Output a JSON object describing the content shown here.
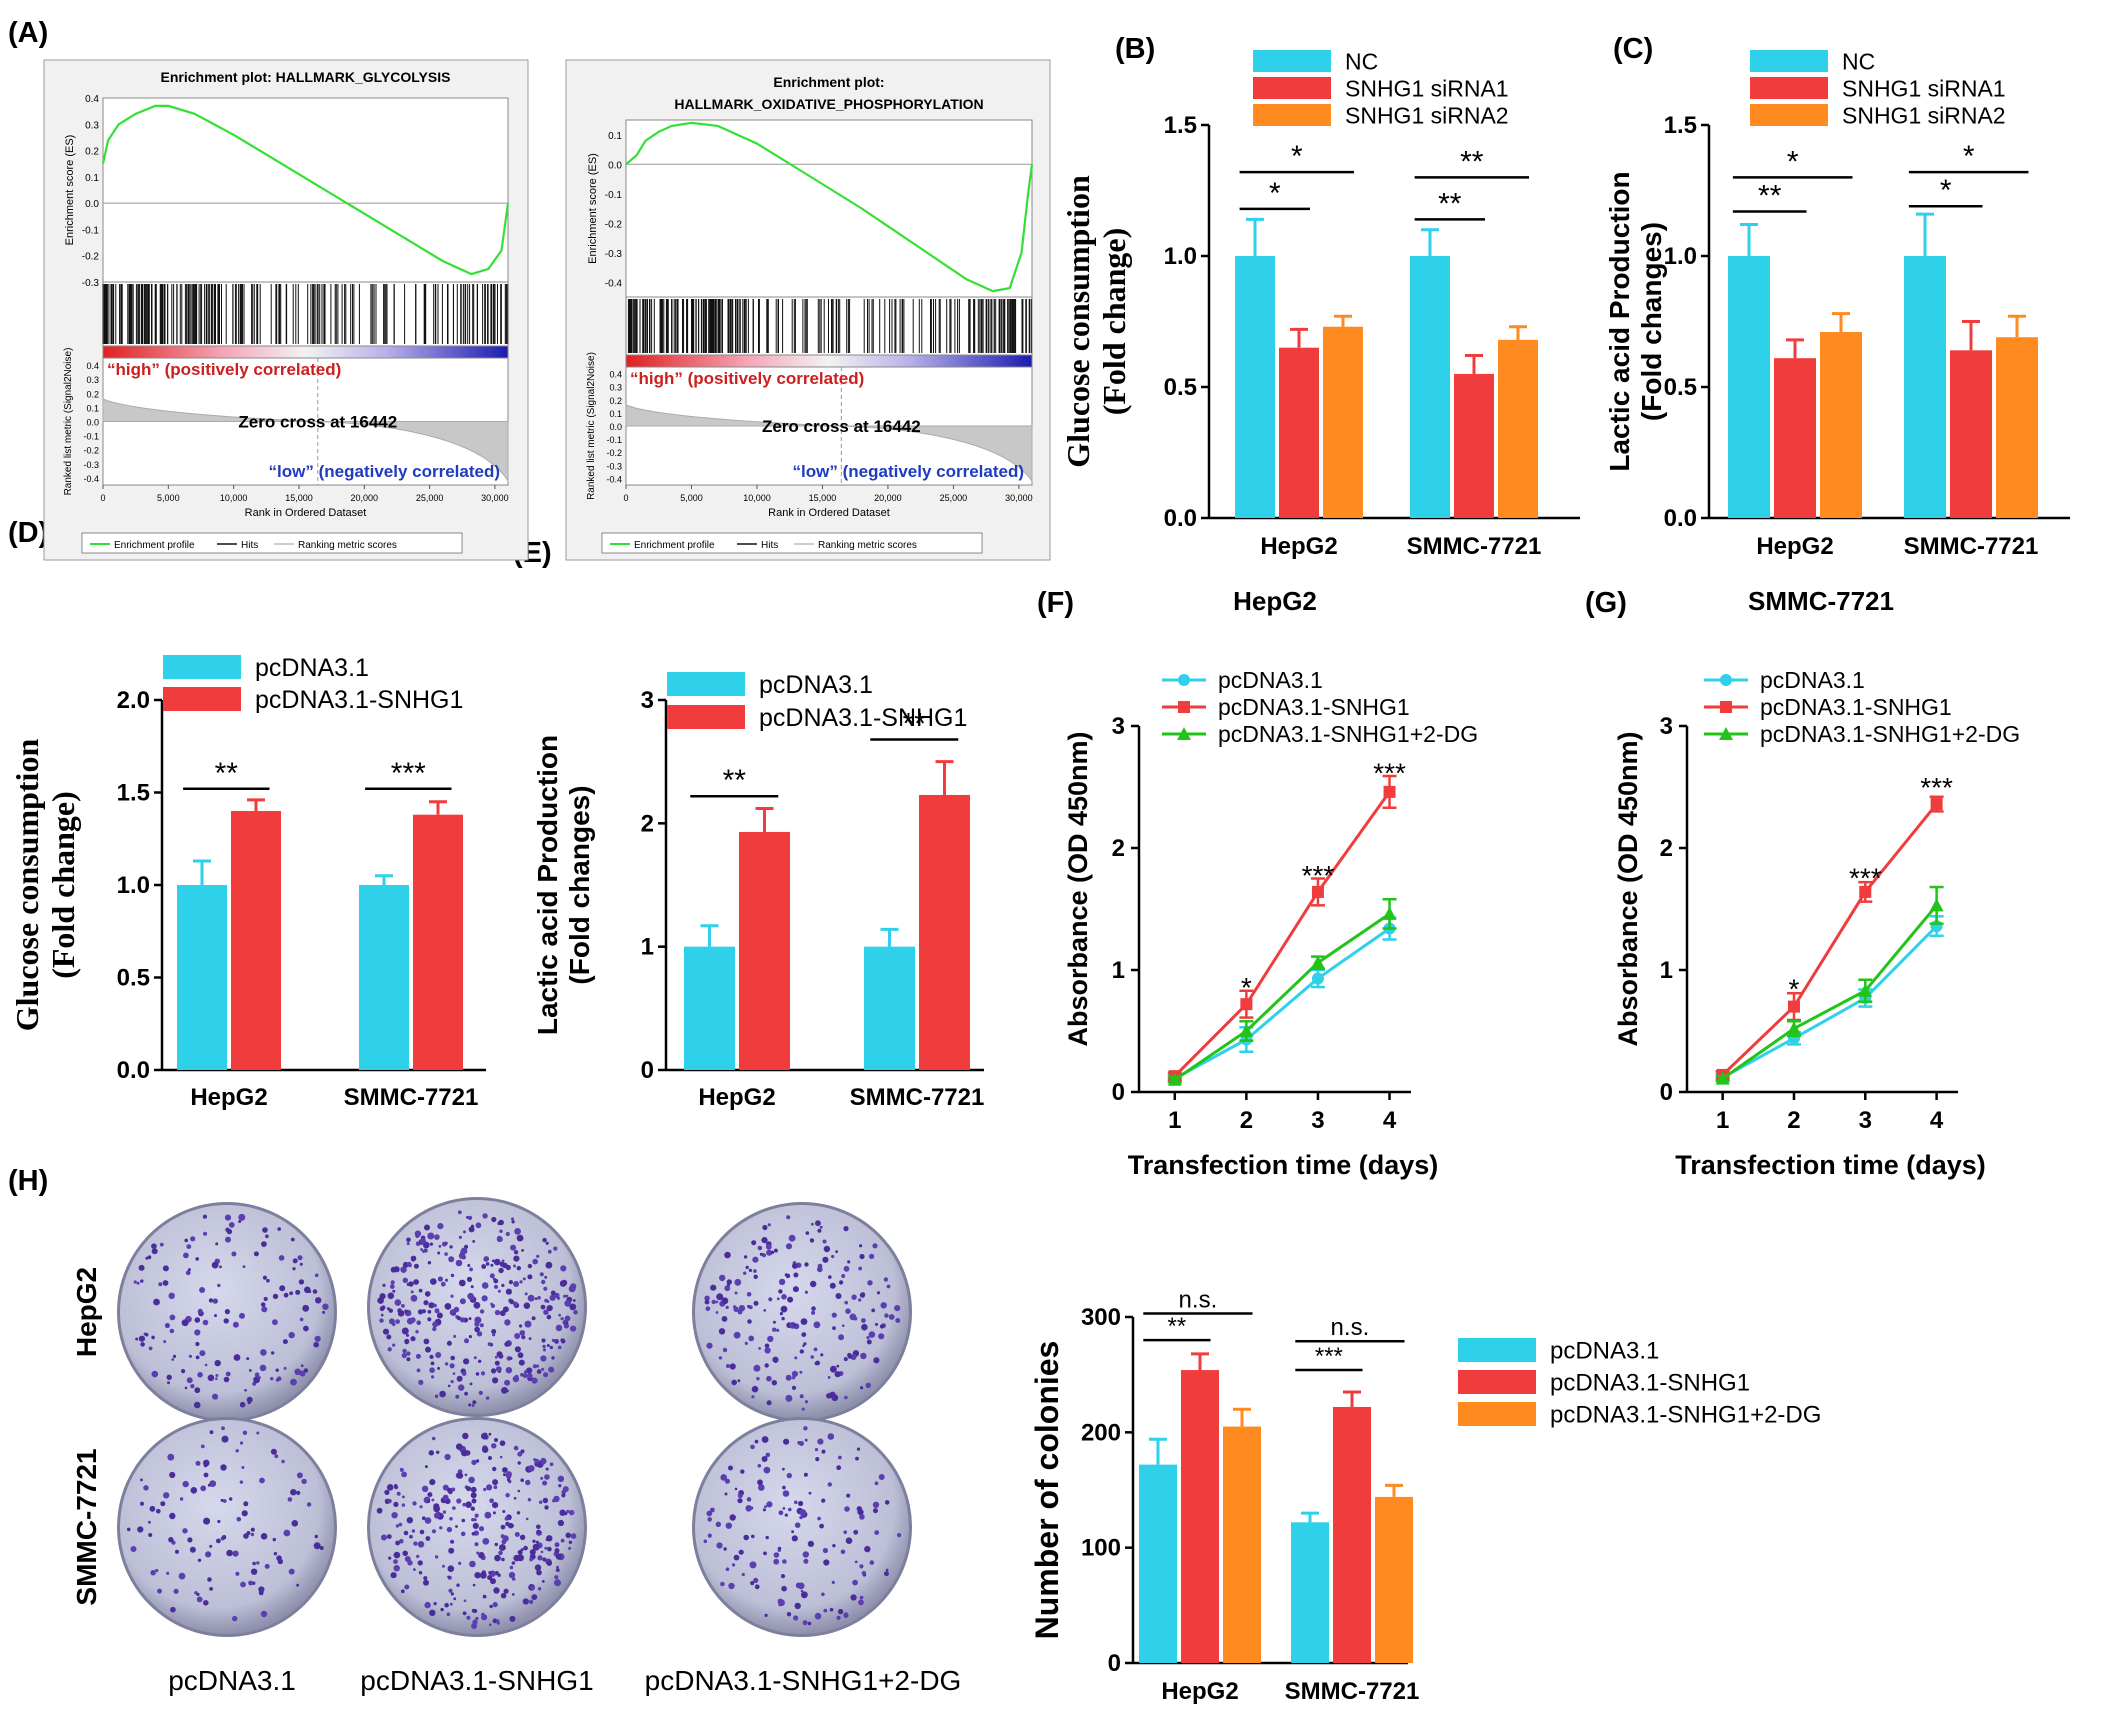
{
  "panel_labels": [
    "(A)",
    "(B)",
    "(C)",
    "(D)",
    "(E)",
    "(F)",
    "(G)",
    "(H)"
  ],
  "gsea": [
    {
      "title_lines": [
        "Enrichment plot: HALLMARK_GLYCOLYSIS"
      ],
      "es_ylabel": "Enrichment score (ES)",
      "es_ticks": [
        "0.4",
        "0.3",
        "0.2",
        "0.1",
        "0.0",
        "-0.1",
        "-0.2",
        "-0.3"
      ],
      "es_range": [
        -0.3,
        0.4
      ],
      "es_curve": [
        [
          0,
          0.15
        ],
        [
          400,
          0.24
        ],
        [
          1200,
          0.3
        ],
        [
          2500,
          0.34
        ],
        [
          4000,
          0.37
        ],
        [
          5000,
          0.37
        ],
        [
          7000,
          0.34
        ],
        [
          10000,
          0.26
        ],
        [
          14000,
          0.14
        ],
        [
          18000,
          0.02
        ],
        [
          22000,
          -0.1
        ],
        [
          26000,
          -0.22
        ],
        [
          28200,
          -0.27
        ],
        [
          29500,
          -0.25
        ],
        [
          30500,
          -0.18
        ],
        [
          31000,
          0.0
        ]
      ],
      "metric_ylabel": "Ranked list metric (Signal2Noise)",
      "metric_ticks": [
        "0.4",
        "0.3",
        "0.2",
        "0.1",
        "0.0",
        "-0.1",
        "-0.2",
        "-0.3",
        "-0.4"
      ],
      "high_label": "“high” (positively correlated)",
      "zero_cross_label": "Zero cross at 16442",
      "low_label": "“low” (negatively correlated)",
      "xlabel": "Rank in Ordered Dataset",
      "xticks": [
        "0",
        "5,000",
        "10,000",
        "15,000",
        "20,000",
        "25,000",
        "30,000"
      ],
      "legend": [
        "Enrichment profile",
        "Hits",
        "Ranking metric scores"
      ]
    },
    {
      "title_lines": [
        "Enrichment plot:",
        "HALLMARK_OXIDATIVE_PHOSPHORYLATION"
      ],
      "es_ylabel": "Enrichment score (ES)",
      "es_ticks": [
        "0.1",
        "0.0",
        "-0.1",
        "-0.2",
        "-0.3",
        "-0.4"
      ],
      "es_range": [
        -0.45,
        0.15
      ],
      "es_curve": [
        [
          0,
          0.0
        ],
        [
          800,
          0.03
        ],
        [
          1500,
          0.08
        ],
        [
          2500,
          0.11
        ],
        [
          3500,
          0.13
        ],
        [
          5000,
          0.14
        ],
        [
          7000,
          0.13
        ],
        [
          10000,
          0.07
        ],
        [
          14000,
          -0.04
        ],
        [
          18000,
          -0.15
        ],
        [
          22000,
          -0.27
        ],
        [
          26000,
          -0.39
        ],
        [
          28000,
          -0.43
        ],
        [
          29300,
          -0.42
        ],
        [
          30200,
          -0.3
        ],
        [
          30700,
          -0.1
        ],
        [
          31000,
          0.0
        ]
      ],
      "metric_ylabel": "Ranked list metric (Signal2Noise)",
      "metric_ticks": [
        "0.4",
        "0.3",
        "0.2",
        "0.1",
        "0.0",
        "-0.1",
        "-0.2",
        "-0.3",
        "-0.4"
      ],
      "high_label": "“high” (positively correlated)",
      "zero_cross_label": "Zero cross at 16442",
      "low_label": "“low” (negatively correlated)",
      "xlabel": "Rank in Ordered Dataset",
      "xticks": [
        "0",
        "5,000",
        "10,000",
        "15,000",
        "20,000",
        "25,000",
        "30,000"
      ],
      "legend": [
        "Enrichment profile",
        "Hits",
        "Ranking metric scores"
      ]
    }
  ],
  "colors": {
    "cyan": "#2ed0ea",
    "red": "#f03c3c",
    "orange": "#ff8a1f",
    "green": "#22c41a",
    "gsea_line": "#33e033",
    "high_text": "#cc1f1f",
    "low_text": "#1f3bbf"
  },
  "chart_data": [
    {
      "panel": "B",
      "type": "bar",
      "ylabel_lines": [
        "Glucose consumption",
        "(Fold change)"
      ],
      "serif_ylabel": true,
      "categories": [
        "HepG2",
        "SMMC-7721"
      ],
      "series": [
        {
          "name": "NC",
          "values": [
            1.0,
            1.0
          ],
          "errors": [
            0.14,
            0.1
          ]
        },
        {
          "name": "SNHG1 siRNA1",
          "values": [
            0.65,
            0.55
          ],
          "errors": [
            0.07,
            0.07
          ]
        },
        {
          "name": "SNHG1 siRNA2",
          "values": [
            0.73,
            0.68
          ],
          "errors": [
            0.04,
            0.05
          ]
        }
      ],
      "ylim": [
        0,
        1.5
      ],
      "yticks": [
        "0.0",
        "0.5",
        "1.0",
        "1.5"
      ],
      "annotations": [
        {
          "group": 0,
          "from": 0,
          "to": 1,
          "y": 1.18,
          "label": "*"
        },
        {
          "group": 0,
          "from": 0,
          "to": 2,
          "y": 1.32,
          "label": "*"
        },
        {
          "group": 1,
          "from": 0,
          "to": 1,
          "y": 1.14,
          "label": "**"
        },
        {
          "group": 1,
          "from": 0,
          "to": 2,
          "y": 1.3,
          "label": "**"
        }
      ]
    },
    {
      "panel": "C",
      "type": "bar",
      "ylabel_lines": [
        "Lactic acid Production",
        "(Fold changes)"
      ],
      "serif_ylabel": false,
      "categories": [
        "HepG2",
        "SMMC-7721"
      ],
      "series": [
        {
          "name": "NC",
          "values": [
            1.0,
            1.0
          ],
          "errors": [
            0.12,
            0.16
          ]
        },
        {
          "name": "SNHG1 siRNA1",
          "values": [
            0.61,
            0.64
          ],
          "errors": [
            0.07,
            0.11
          ]
        },
        {
          "name": "SNHG1 siRNA2",
          "values": [
            0.71,
            0.69
          ],
          "errors": [
            0.07,
            0.08
          ]
        }
      ],
      "ylim": [
        0,
        1.5
      ],
      "yticks": [
        "0.0",
        "0.5",
        "1.0",
        "1.5"
      ],
      "annotations": [
        {
          "group": 0,
          "from": 0,
          "to": 1,
          "y": 1.17,
          "label": "**"
        },
        {
          "group": 0,
          "from": 0,
          "to": 2,
          "y": 1.3,
          "label": "*"
        },
        {
          "group": 1,
          "from": 0,
          "to": 1,
          "y": 1.19,
          "label": "*"
        },
        {
          "group": 1,
          "from": 0,
          "to": 2,
          "y": 1.32,
          "label": "*"
        }
      ]
    },
    {
      "panel": "D",
      "type": "bar",
      "ylabel_lines": [
        "Glucose consumption",
        "(Fold change)"
      ],
      "serif_ylabel": true,
      "categories": [
        "HepG2",
        "SMMC-7721"
      ],
      "series": [
        {
          "name": "pcDNA3.1",
          "values": [
            1.0,
            1.0
          ],
          "errors": [
            0.13,
            0.05
          ]
        },
        {
          "name": "pcDNA3.1-SNHG1",
          "values": [
            1.4,
            1.38
          ],
          "errors": [
            0.06,
            0.07
          ]
        }
      ],
      "ylim": [
        0,
        2.0
      ],
      "yticks": [
        "0.0",
        "0.5",
        "1.0",
        "1.5",
        "2.0"
      ],
      "annotations": [
        {
          "group": 0,
          "from": 0,
          "to": 1,
          "y": 1.52,
          "label": "**"
        },
        {
          "group": 1,
          "from": 0,
          "to": 1,
          "y": 1.52,
          "label": "***"
        }
      ]
    },
    {
      "panel": "E",
      "type": "bar",
      "ylabel_lines": [
        "Lactic acid Production",
        "(Fold changes)"
      ],
      "serif_ylabel": false,
      "categories": [
        "HepG2",
        "SMMC-7721"
      ],
      "series": [
        {
          "name": "pcDNA3.1",
          "values": [
            1.0,
            1.0
          ],
          "errors": [
            0.17,
            0.14
          ]
        },
        {
          "name": "pcDNA3.1-SNHG1",
          "values": [
            1.93,
            2.23
          ],
          "errors": [
            0.19,
            0.27
          ]
        }
      ],
      "ylim": [
        0,
        3
      ],
      "yticks": [
        "0",
        "1",
        "2",
        "3"
      ],
      "annotations": [
        {
          "group": 0,
          "from": 0,
          "to": 1,
          "y": 2.22,
          "label": "**"
        },
        {
          "group": 1,
          "from": 0,
          "to": 1,
          "y": 2.68,
          "label": "**"
        }
      ]
    },
    {
      "panel": "F",
      "type": "line",
      "title": "HepG2",
      "xlabel": "Transfection time (days)",
      "ylabel": "Absorbance (OD 450nm)",
      "x": [
        1,
        2,
        3,
        4
      ],
      "xlim": [
        0.5,
        4.3
      ],
      "ylim": [
        0,
        3
      ],
      "yticks": [
        "0",
        "1",
        "2",
        "3"
      ],
      "series": [
        {
          "name": "pcDNA3.1",
          "marker": "circle",
          "values": [
            0.11,
            0.43,
            0.93,
            1.34
          ],
          "errors": [
            0.03,
            0.1,
            0.07,
            0.09
          ]
        },
        {
          "name": "pcDNA3.1-SNHG1",
          "marker": "square",
          "values": [
            0.13,
            0.72,
            1.64,
            2.46
          ],
          "errors": [
            0.03,
            0.11,
            0.11,
            0.13
          ]
        },
        {
          "name": "pcDNA3.1-SNHG1+2-DG",
          "marker": "triangle",
          "values": [
            0.1,
            0.5,
            1.06,
            1.46
          ],
          "errors": [
            0.02,
            0.08,
            0.05,
            0.12
          ]
        }
      ],
      "annotations": [
        {
          "x": 2,
          "y": 0.86,
          "label": "*"
        },
        {
          "x": 3,
          "y": 1.78,
          "label": "***"
        },
        {
          "x": 4,
          "y": 2.62,
          "label": "***"
        }
      ]
    },
    {
      "panel": "G",
      "type": "line",
      "title": "SMMC-7721",
      "xlabel": "Transfection time (days)",
      "ylabel": "Absorbance (OD 450nm)",
      "x": [
        1,
        2,
        3,
        4
      ],
      "xlim": [
        0.5,
        4.3
      ],
      "ylim": [
        0,
        3
      ],
      "yticks": [
        "0",
        "1",
        "2",
        "3"
      ],
      "series": [
        {
          "name": "pcDNA3.1",
          "marker": "circle",
          "values": [
            0.12,
            0.44,
            0.77,
            1.36
          ],
          "errors": [
            0.03,
            0.05,
            0.07,
            0.08
          ]
        },
        {
          "name": "pcDNA3.1-SNHG1",
          "marker": "square",
          "values": [
            0.14,
            0.7,
            1.64,
            2.36
          ],
          "errors": [
            0.03,
            0.11,
            0.08,
            0.06
          ]
        },
        {
          "name": "pcDNA3.1-SNHG1+2-DG",
          "marker": "triangle",
          "values": [
            0.11,
            0.52,
            0.83,
            1.53
          ],
          "errors": [
            0.02,
            0.06,
            0.09,
            0.15
          ]
        }
      ],
      "annotations": [
        {
          "x": 2,
          "y": 0.85,
          "label": "*"
        },
        {
          "x": 3,
          "y": 1.76,
          "label": "***"
        },
        {
          "x": 4,
          "y": 2.5,
          "label": "***"
        }
      ]
    },
    {
      "panel": "H",
      "type": "bar",
      "ylabel_lines": [
        "Number of colonies"
      ],
      "serif_ylabel": false,
      "categories": [
        "HepG2",
        "SMMC-7721"
      ],
      "series": [
        {
          "name": "pcDNA3.1",
          "values": [
            172,
            122
          ],
          "errors": [
            22,
            8
          ]
        },
        {
          "name": "pcDNA3.1-SNHG1",
          "values": [
            254,
            222
          ],
          "errors": [
            14,
            13
          ]
        },
        {
          "name": "pcDNA3.1-SNHG1+2-DG",
          "values": [
            205,
            144
          ],
          "errors": [
            15,
            10
          ]
        }
      ],
      "ylim": [
        0,
        300
      ],
      "yticks": [
        "0",
        "100",
        "200",
        "300"
      ],
      "annotations": [
        {
          "group": 0,
          "from": 0,
          "to": 1,
          "y": 280,
          "label": "**"
        },
        {
          "group": 0,
          "from": 0,
          "to": 2,
          "y": 303,
          "label": "n.s."
        },
        {
          "group": 1,
          "from": 0,
          "to": 1,
          "y": 254,
          "label": "***"
        },
        {
          "group": 1,
          "from": 0,
          "to": 2,
          "y": 279,
          "label": "n.s."
        }
      ]
    }
  ],
  "colony_assay": {
    "row_labels": [
      "HepG2",
      "SMMC-7721"
    ],
    "column_labels": [
      "pcDNA3.1",
      "pcDNA3.1-SNHG1",
      "pcDNA3.1-SNHG1+2-DG"
    ],
    "colony_density": [
      [
        150,
        340,
        200
      ],
      [
        110,
        300,
        150
      ]
    ]
  }
}
